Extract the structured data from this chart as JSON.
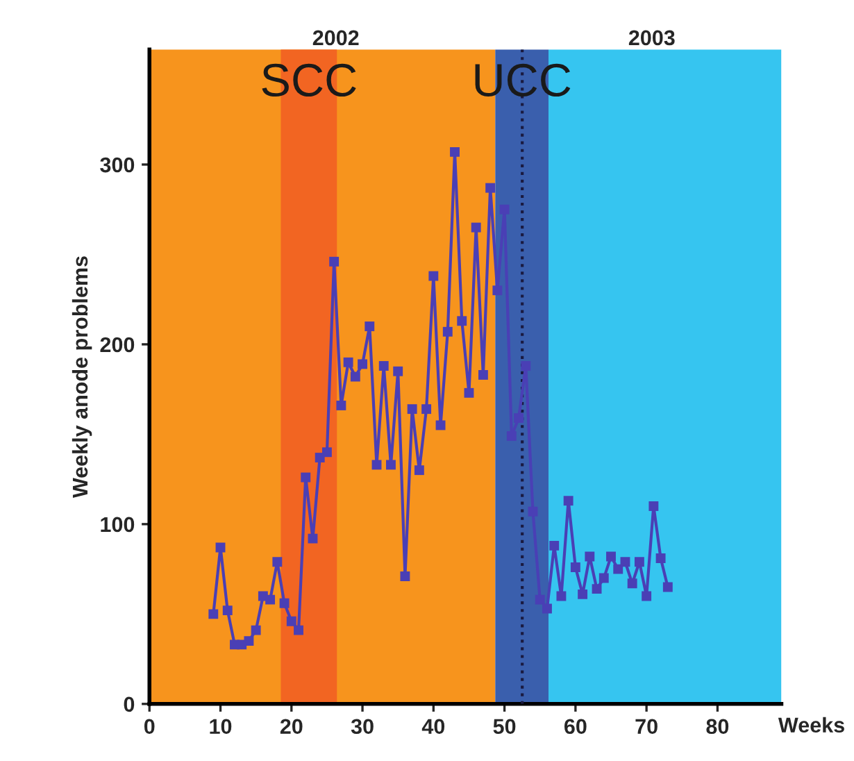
{
  "chart_data": {
    "type": "line",
    "xlabel": "Weeks",
    "ylabel": "Weekly anode problems",
    "x": [
      9,
      10,
      11,
      12,
      13,
      14,
      15,
      16,
      17,
      18,
      19,
      20,
      21,
      22,
      23,
      24,
      25,
      26,
      27,
      28,
      29,
      30,
      31,
      32,
      33,
      34,
      35,
      36,
      37,
      38,
      39,
      40,
      41,
      42,
      43,
      44,
      45,
      46,
      47,
      48,
      49,
      50,
      51,
      52,
      53,
      54,
      55,
      56,
      57,
      58,
      59,
      60,
      61,
      62,
      63,
      64,
      65,
      66,
      67,
      68,
      69,
      70,
      71,
      72,
      73
    ],
    "series": [
      {
        "color": "#4a3fb5",
        "values": [
          50,
          87,
          52,
          33,
          33,
          35,
          41,
          60,
          58,
          79,
          56,
          46,
          41,
          126,
          92,
          137,
          140,
          246,
          166,
          190,
          182,
          189,
          210,
          133,
          188,
          133,
          185,
          71,
          164,
          130,
          164,
          238,
          155,
          207,
          307,
          213,
          173,
          265,
          183,
          287,
          230,
          275,
          149,
          159,
          188,
          107,
          58,
          53,
          88,
          60,
          113,
          76,
          61,
          82,
          64,
          70,
          82,
          75,
          79,
          67,
          79,
          60,
          110,
          81,
          65
        ]
      }
    ],
    "marker": "square",
    "line_style": "solid",
    "xlim": [
      0,
      89
    ],
    "ylim": [
      0,
      364
    ],
    "xticks": [
      0,
      10,
      20,
      30,
      40,
      50,
      60,
      70,
      80
    ],
    "yticks": [
      0,
      100,
      200,
      300
    ],
    "bands": [
      {
        "axis": "x",
        "from": 0,
        "to": 48.7,
        "color": "#f7941d"
      },
      {
        "axis": "x",
        "from": 18.5,
        "to": 26.4,
        "label": "SCC",
        "color": "#f26522"
      },
      {
        "axis": "x",
        "from": 48.7,
        "to": 56.2,
        "label": "UCC",
        "color": "#3a5fad"
      },
      {
        "axis": "x",
        "from": 56.2,
        "to": 89,
        "color": "#36c5f0"
      }
    ],
    "ref_lines": [
      {
        "axis": "x",
        "value": 52.5,
        "color": "#1a1a40",
        "line_style": "dotted"
      }
    ],
    "annotations": [
      "2002",
      "2003"
    ],
    "grid": false
  }
}
